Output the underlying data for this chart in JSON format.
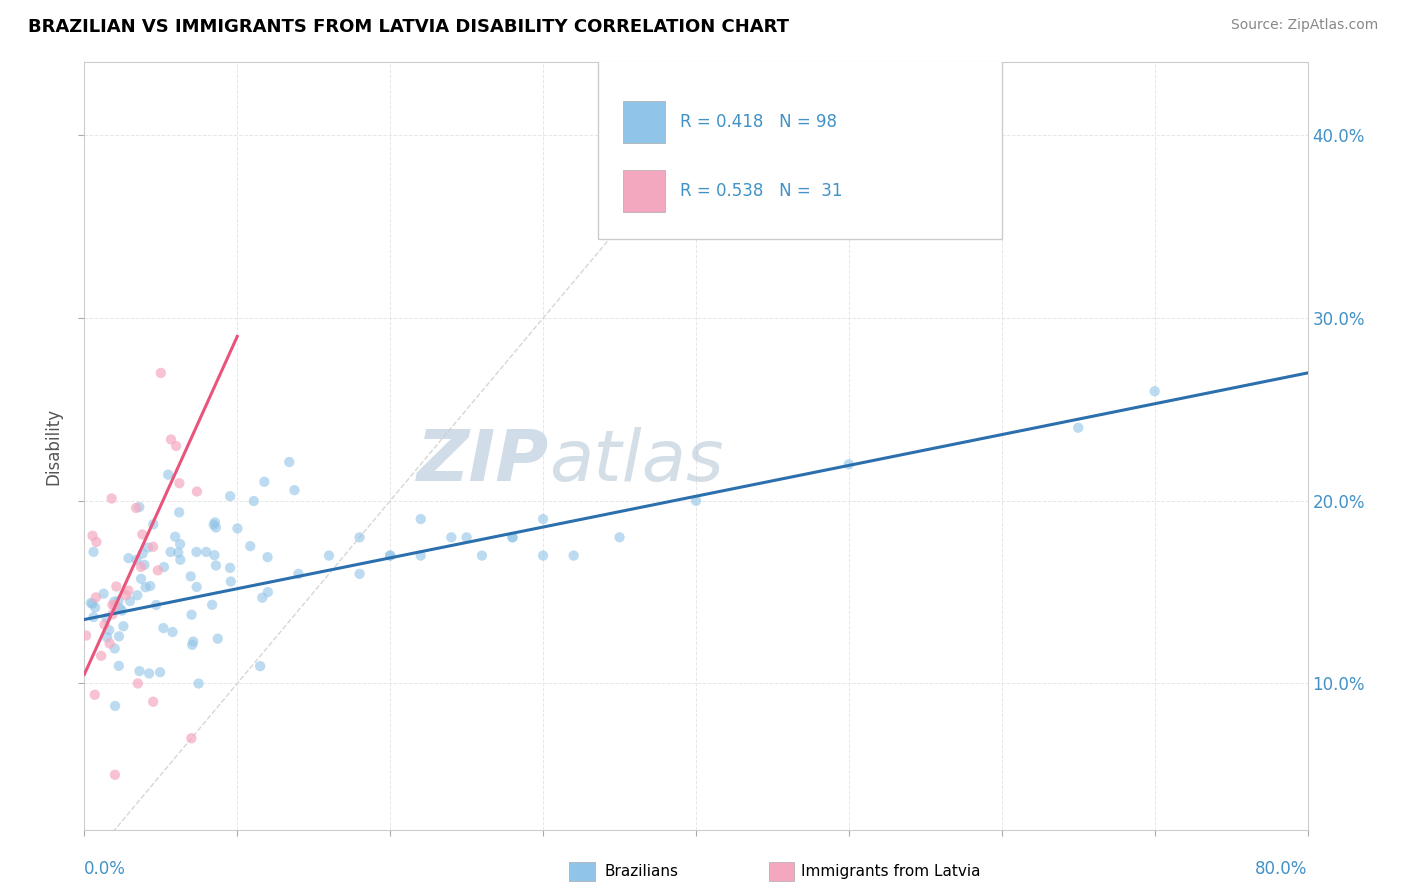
{
  "title": "BRAZILIAN VS IMMIGRANTS FROM LATVIA DISABILITY CORRELATION CHART",
  "source": "Source: ZipAtlas.com",
  "ylabel": "Disability",
  "xlim": [
    0.0,
    80.0
  ],
  "ylim": [
    2.0,
    44.0
  ],
  "yticks": [
    10.0,
    20.0,
    30.0,
    40.0
  ],
  "ytick_labels": [
    "10.0%",
    "20.0%",
    "30.0%",
    "40.0%"
  ],
  "xticks": [
    0,
    10,
    20,
    30,
    40,
    50,
    60,
    70,
    80
  ],
  "blue_color": "#90c4e8",
  "pink_color": "#f4a8c0",
  "blue_line_color": "#2c6fad",
  "pink_line_color": "#e8547a",
  "r_blue": 0.418,
  "n_blue": 98,
  "r_pink": 0.538,
  "n_pink": 31,
  "blue_line_x0": 0.0,
  "blue_line_y0": 13.5,
  "blue_line_x1": 80.0,
  "blue_line_y1": 27.0,
  "pink_line_x0": 0.0,
  "pink_line_y0": 10.5,
  "pink_line_x1": 10.0,
  "pink_line_y1": 29.0,
  "diag_color": "#cccccc",
  "watermark_color": "#d0dce8",
  "grid_color": "#e0e0e0"
}
